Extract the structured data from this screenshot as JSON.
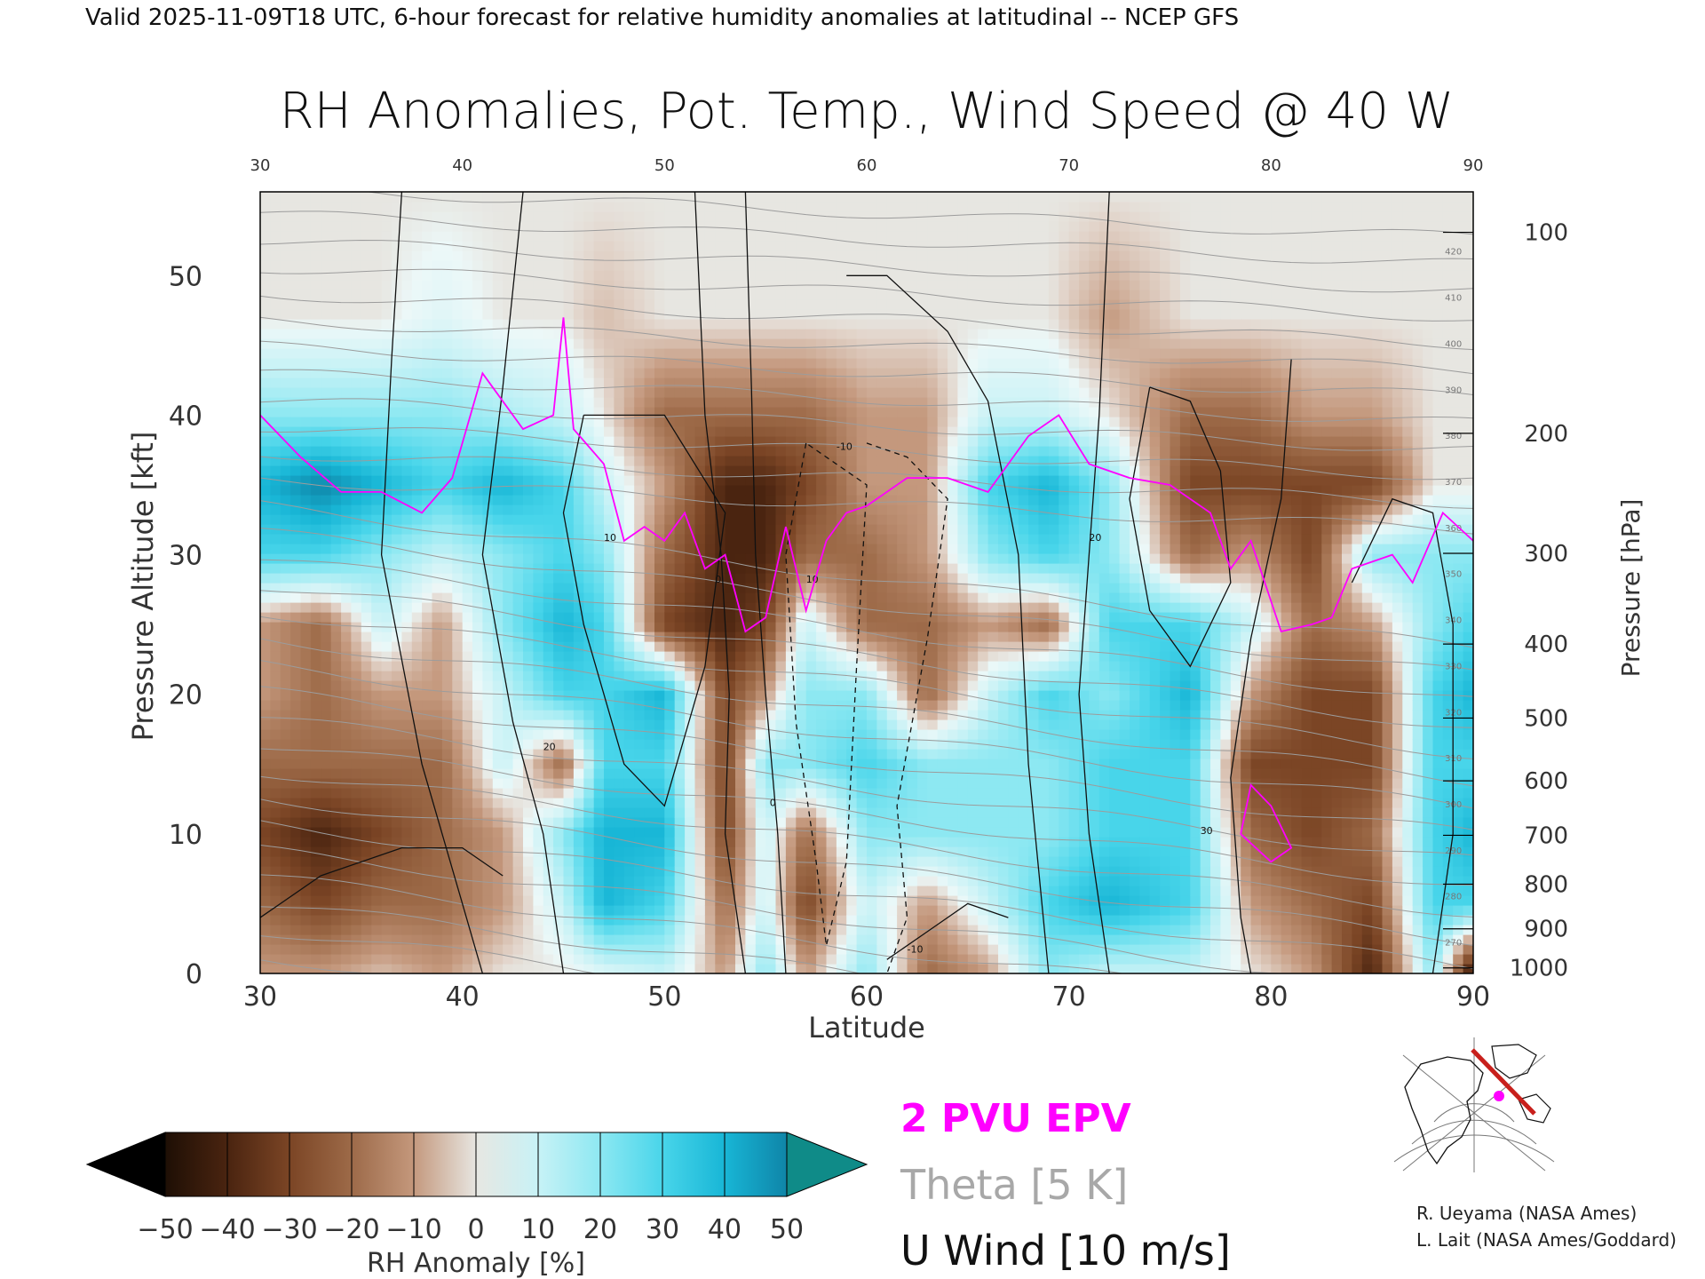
{
  "header": {
    "valid_line": "Valid 2025-11-09T18 UTC, 6-hour forecast for relative humidity anomalies at latitudinal -- NCEP GFS",
    "title": "RH Anomalies, Pot. Temp., Wind Speed @ 40 W"
  },
  "chart_data": {
    "type": "heatmap",
    "title": "RH Anomalies, Pot. Temp., Wind Speed @ 40 W",
    "xlabel": "Latitude",
    "ylabel": "Pressure Altitude [kft]",
    "y2label": "Pressure [hPa]",
    "xlim": [
      30,
      90
    ],
    "ylim": [
      0,
      56
    ],
    "x_ticks": [
      "30",
      "40",
      "50",
      "60",
      "70",
      "80",
      "90"
    ],
    "top_ticks": [
      "30",
      "40",
      "50",
      "60",
      "70",
      "80",
      "90"
    ],
    "y_ticks": [
      "0",
      "10",
      "20",
      "30",
      "40",
      "50"
    ],
    "pressure_ticks": [
      {
        "label": "100",
        "kft": 53.1
      },
      {
        "label": "200",
        "kft": 38.7
      },
      {
        "label": "300",
        "kft": 30.1
      },
      {
        "label": "400",
        "kft": 23.6
      },
      {
        "label": "500",
        "kft": 18.3
      },
      {
        "label": "600",
        "kft": 13.8
      },
      {
        "label": "700",
        "kft": 9.9
      },
      {
        "label": "800",
        "kft": 6.4
      },
      {
        "label": "900",
        "kft": 3.2
      },
      {
        "label": "1000",
        "kft": 0.4
      }
    ],
    "rh_columns": [
      {
        "lat": 30,
        "v": [
          -10,
          -20,
          -30,
          -20,
          -10,
          -10,
          30,
          40,
          20,
          0,
          0
        ]
      },
      {
        "lat": 33,
        "v": [
          -10,
          -30,
          -40,
          -20,
          -20,
          -20,
          30,
          50,
          20,
          0,
          0
        ]
      },
      {
        "lat": 36,
        "v": [
          -5,
          -20,
          -30,
          -20,
          -10,
          10,
          20,
          40,
          20,
          0,
          0
        ]
      },
      {
        "lat": 39,
        "v": [
          -10,
          -20,
          -20,
          -20,
          -10,
          -10,
          10,
          30,
          20,
          5,
          0
        ]
      },
      {
        "lat": 42,
        "v": [
          0,
          -10,
          -10,
          10,
          10,
          20,
          20,
          40,
          15,
          0,
          0
        ]
      },
      {
        "lat": 45,
        "v": [
          0,
          10,
          20,
          -20,
          30,
          40,
          30,
          30,
          10,
          0,
          0
        ]
      },
      {
        "lat": 47,
        "v": [
          5,
          40,
          40,
          30,
          30,
          30,
          20,
          10,
          0,
          -5,
          0
        ]
      },
      {
        "lat": 50,
        "v": [
          10,
          30,
          40,
          30,
          40,
          -30,
          -20,
          -10,
          -20,
          0,
          0
        ]
      },
      {
        "lat": 53,
        "v": [
          -10,
          -20,
          -30,
          -30,
          -30,
          -40,
          -40,
          -40,
          -20,
          0,
          0
        ]
      },
      {
        "lat": 55,
        "v": [
          20,
          10,
          10,
          20,
          -10,
          -30,
          -40,
          -40,
          -20,
          0,
          0
        ]
      },
      {
        "lat": 57,
        "v": [
          -10,
          -30,
          -20,
          20,
          20,
          10,
          -20,
          -30,
          -20,
          0,
          0
        ]
      },
      {
        "lat": 60,
        "v": [
          20,
          10,
          20,
          30,
          20,
          -20,
          -20,
          -10,
          -10,
          0,
          0
        ]
      },
      {
        "lat": 63,
        "v": [
          -20,
          -10,
          20,
          20,
          -20,
          -20,
          -10,
          -10,
          -10,
          0,
          0
        ]
      },
      {
        "lat": 66,
        "v": [
          -10,
          10,
          20,
          20,
          10,
          -10,
          20,
          30,
          10,
          0,
          0
        ]
      },
      {
        "lat": 69,
        "v": [
          20,
          30,
          20,
          20,
          30,
          -20,
          30,
          40,
          10,
          0,
          0
        ]
      },
      {
        "lat": 72,
        "v": [
          10,
          40,
          30,
          30,
          20,
          30,
          20,
          20,
          0,
          -10,
          0
        ]
      },
      {
        "lat": 76,
        "v": [
          10,
          30,
          30,
          30,
          40,
          30,
          -20,
          -30,
          -20,
          0,
          0
        ]
      },
      {
        "lat": 79,
        "v": [
          0,
          -10,
          -20,
          -30,
          -10,
          10,
          -10,
          -30,
          -20,
          0,
          0
        ]
      },
      {
        "lat": 82,
        "v": [
          -10,
          -20,
          -30,
          -30,
          -30,
          -20,
          -30,
          -30,
          -10,
          0,
          0
        ]
      },
      {
        "lat": 85,
        "v": [
          -40,
          -30,
          -20,
          -30,
          -30,
          -10,
          20,
          -30,
          -10,
          0,
          0
        ]
      },
      {
        "lat": 88,
        "v": [
          20,
          30,
          30,
          30,
          30,
          20,
          20,
          0,
          0,
          0,
          0
        ]
      },
      {
        "lat": 90,
        "v": [
          -50,
          30,
          40,
          30,
          40,
          30,
          20,
          0,
          0,
          0,
          0
        ]
      }
    ],
    "rh_levels_kft": [
      0,
      5,
      10,
      15,
      20,
      25,
      30,
      35,
      40,
      47,
      56
    ],
    "epv_2pvu": [
      [
        30,
        40
      ],
      [
        32,
        37
      ],
      [
        34,
        34.5
      ],
      [
        36,
        34.5
      ],
      [
        38,
        33
      ],
      [
        39.5,
        35.5
      ],
      [
        41,
        43
      ],
      [
        43,
        39
      ],
      [
        44.5,
        40
      ],
      [
        45,
        47
      ],
      [
        45.5,
        39
      ],
      [
        47,
        36.5
      ],
      [
        48,
        31
      ],
      [
        49,
        32
      ],
      [
        50,
        31
      ],
      [
        51,
        33
      ],
      [
        52,
        29
      ],
      [
        53,
        30
      ],
      [
        54,
        24.5
      ],
      [
        55,
        25.5
      ],
      [
        56,
        32
      ],
      [
        57,
        26
      ],
      [
        58,
        31
      ],
      [
        59,
        33
      ],
      [
        60,
        33.5
      ],
      [
        62,
        35.5
      ],
      [
        64,
        35.5
      ],
      [
        66,
        34.5
      ],
      [
        68,
        38.5
      ],
      [
        69.5,
        40
      ],
      [
        71,
        36.5
      ],
      [
        73,
        35.5
      ],
      [
        75,
        35
      ],
      [
        77,
        33
      ],
      [
        78,
        29
      ],
      [
        79,
        31
      ],
      [
        80.5,
        24.5
      ],
      [
        82,
        25
      ],
      [
        83,
        25.5
      ],
      [
        84,
        29
      ],
      [
        86,
        30
      ],
      [
        87,
        28
      ],
      [
        88.5,
        33
      ],
      [
        90,
        31
      ]
    ],
    "epv_2pvu_low": [
      [
        78.5,
        10
      ],
      [
        79,
        13.5
      ],
      [
        80,
        12
      ],
      [
        81,
        9
      ],
      [
        80,
        8
      ],
      [
        78.5,
        10
      ]
    ],
    "theta_levels": [
      "270",
      "280",
      "290",
      "300",
      "310",
      "320",
      "330",
      "340",
      "350",
      "360",
      "370",
      "380",
      "390",
      "400",
      "410",
      "420"
    ],
    "u_wind_labels": [
      "-10",
      "0",
      "10",
      "20",
      "30"
    ],
    "legend": [
      {
        "label": "2 PVU EPV",
        "color": "#ff00ff"
      },
      {
        "label": "Theta [5 K]",
        "color": "#a0a0a0"
      },
      {
        "label": "U Wind [10 m/s]",
        "color": "#000000"
      }
    ],
    "colorbar": {
      "label": "RH Anomaly [%]",
      "ticks": [
        "−50",
        "−40",
        "−30",
        "−20",
        "−10",
        "0",
        "10",
        "20",
        "30",
        "40",
        "50"
      ],
      "colors": [
        "#000000",
        "#4a2410",
        "#7b4525",
        "#9d6a48",
        "#bd9277",
        "#dcc2b1",
        "#eef8f8",
        "#c6f2f6",
        "#8de8f2",
        "#48d5ea",
        "#18b6d6",
        "#0f85a8",
        "#0f8b88"
      ]
    }
  },
  "map_inset": {
    "section_color": "#c8201c",
    "marker_color": "#ff00ff"
  },
  "credits": [
    "R. Ueyama (NASA Ames)",
    "L. Lait (NASA Ames/Goddard)"
  ]
}
